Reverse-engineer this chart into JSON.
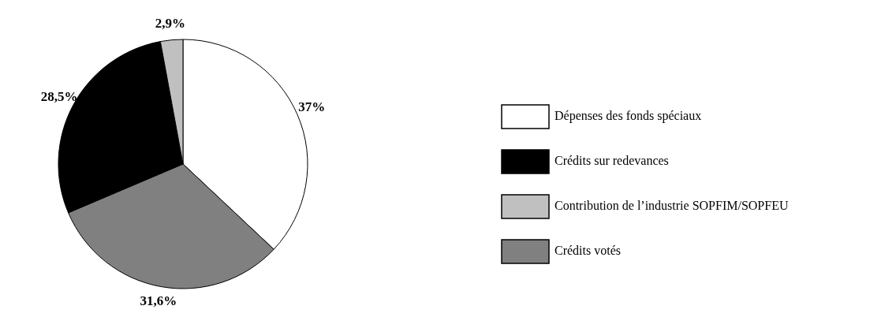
{
  "chart_data": {
    "type": "pie",
    "categories": [
      "Dépenses des fonds spéciaux",
      "Crédits votés",
      "Crédits sur redevances",
      "Contribution de l’industrie SOPFIM/SOPFEU"
    ],
    "values": [
      37,
      31.6,
      28.5,
      2.9
    ],
    "colors": [
      "#ffffff",
      "#808080",
      "#000000",
      "#c0c0c0"
    ],
    "value_labels": [
      "37%",
      "31,6%",
      "28,5%",
      "2,9%"
    ],
    "legend": "right"
  }
}
